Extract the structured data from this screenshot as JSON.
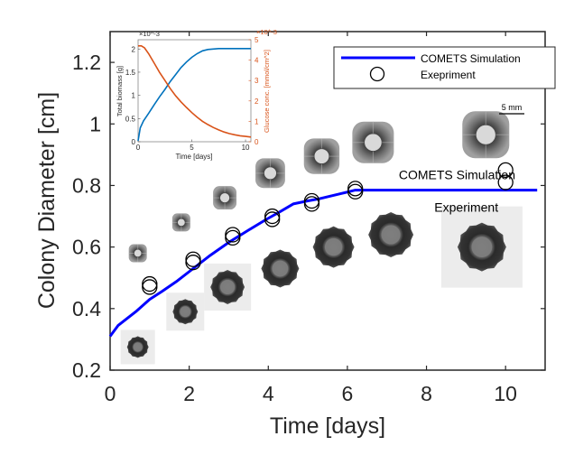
{
  "chart_data": [
    {
      "type": "line",
      "role": "main",
      "title": "",
      "xlabel": "Time [days]",
      "ylabel": "Colony Diameter [cm]",
      "xlim": [
        0,
        11
      ],
      "ylim": [
        0.2,
        1.3
      ],
      "xticks": [
        0,
        2,
        4,
        6,
        8,
        10
      ],
      "xtick_labels": [
        "0",
        "2",
        "4",
        "6",
        "8",
        "10"
      ],
      "yticks": [
        0.2,
        0.4,
        0.6,
        0.8,
        1.0,
        1.2
      ],
      "ytick_labels": [
        "0.2",
        "0.4",
        "0.6",
        "0.8",
        "1",
        "1.2"
      ],
      "grid": false,
      "legend": {
        "placement": "top-right",
        "entries": [
          {
            "label": "COMETS Simulation",
            "marker": "line",
            "color": "#0000ff"
          },
          {
            "label": "Exepriment",
            "marker": "circle",
            "color": "#000000"
          }
        ]
      },
      "series": [
        {
          "name": "COMETS Simulation",
          "style": "line",
          "color": "#0000ff",
          "x": [
            0,
            0.2,
            0.65,
            1.0,
            1.3,
            1.7,
            2.1,
            2.5,
            3.0,
            3.5,
            3.95,
            4.3,
            4.63,
            5.0,
            5.3,
            5.85,
            6.2,
            7.0,
            8.0,
            9.0,
            10.0,
            10.8
          ],
          "y": [
            0.31,
            0.345,
            0.39,
            0.43,
            0.455,
            0.49,
            0.53,
            0.57,
            0.615,
            0.655,
            0.69,
            0.715,
            0.74,
            0.75,
            0.757,
            0.774,
            0.785,
            0.785,
            0.785,
            0.785,
            0.785,
            0.785
          ]
        },
        {
          "name": "Exepriment",
          "style": "scatter",
          "marker": "open-circle",
          "color": "#000000",
          "x": [
            1.0,
            1.0,
            2.1,
            2.1,
            3.1,
            3.1,
            4.1,
            4.1,
            5.1,
            5.1,
            6.2,
            6.2,
            10.0,
            10.0
          ],
          "y": [
            0.48,
            0.47,
            0.56,
            0.55,
            0.64,
            0.63,
            0.7,
            0.69,
            0.75,
            0.74,
            0.79,
            0.78,
            0.85,
            0.81
          ]
        }
      ],
      "annotations": [
        {
          "text": "COMETS Simulation",
          "x": 7.3,
          "y": 0.82
        },
        {
          "text": "Experiment",
          "x": 8.2,
          "y": 0.715
        },
        {
          "text": "5 mm",
          "kind": "scale-bar"
        }
      ],
      "colony_images": {
        "simulation": [
          {
            "t": 0.7,
            "d": 0.58
          },
          {
            "t": 1.8,
            "d": 0.68
          },
          {
            "t": 2.9,
            "d": 0.76
          },
          {
            "t": 4.05,
            "d": 0.84
          },
          {
            "t": 5.35,
            "d": 0.895
          },
          {
            "t": 6.65,
            "d": 0.94
          },
          {
            "t": 9.5,
            "d": 0.965
          }
        ],
        "experiment": [
          {
            "t": 0.7,
            "d": 0.275,
            "framed": true
          },
          {
            "t": 1.9,
            "d": 0.39,
            "framed": true
          },
          {
            "t": 2.97,
            "d": 0.47,
            "framed": true
          },
          {
            "t": 4.3,
            "d": 0.53,
            "framed": false
          },
          {
            "t": 5.65,
            "d": 0.6,
            "framed": false
          },
          {
            "t": 7.1,
            "d": 0.64,
            "framed": false
          },
          {
            "t": 9.4,
            "d": 0.6,
            "framed": true
          }
        ]
      }
    },
    {
      "type": "line",
      "role": "inset",
      "title": "",
      "xlabel": "Time [days]",
      "ylabel": "Total biomass [g]",
      "ylabel_right": "Glucose conc. [mmol/cm^2]",
      "xlim": [
        0,
        10.5
      ],
      "ylim": [
        0,
        2.2
      ],
      "ylim_right": [
        0,
        5
      ],
      "xticks": [
        0,
        5,
        10
      ],
      "xtick_labels": [
        "0",
        "5",
        "10"
      ],
      "yticks": [
        0,
        0.5,
        1,
        1.5,
        2
      ],
      "ytick_labels": [
        "0",
        "0.5",
        "1",
        "1.5",
        "2"
      ],
      "yticks_right": [
        0,
        1,
        2,
        3,
        4,
        5
      ],
      "ytick_labels_right": [
        "0",
        "1",
        "2",
        "3",
        "4",
        "5"
      ],
      "y_exponent": "×10^-3",
      "y_exponent_right": "×10^-3",
      "grid": false,
      "series": [
        {
          "name": "Total biomass",
          "axis": "left",
          "color": "#0072bd",
          "x": [
            0,
            0.2,
            0.5,
            1,
            1.5,
            2,
            2.5,
            3,
            3.5,
            4,
            4.5,
            5,
            5.5,
            6,
            6.5,
            7,
            7.5,
            8,
            9,
            10,
            10.5
          ],
          "y": [
            0.02,
            0.3,
            0.45,
            0.62,
            0.8,
            0.97,
            1.13,
            1.3,
            1.45,
            1.6,
            1.72,
            1.82,
            1.9,
            1.96,
            1.99,
            2.0,
            2.01,
            2.01,
            2.01,
            2.01,
            2.01
          ]
        },
        {
          "name": "Glucose conc.",
          "axis": "right",
          "color": "#d95319",
          "x": [
            0,
            0.3,
            0.6,
            1,
            1.5,
            2,
            2.5,
            3,
            3.5,
            4,
            4.5,
            5,
            5.5,
            6,
            6.5,
            7,
            7.5,
            8,
            8.5,
            9,
            9.5,
            10,
            10.5
          ],
          "y": [
            4.7,
            4.7,
            4.6,
            4.3,
            3.85,
            3.4,
            3.0,
            2.6,
            2.25,
            1.95,
            1.68,
            1.43,
            1.2,
            1.0,
            0.84,
            0.7,
            0.58,
            0.48,
            0.4,
            0.34,
            0.29,
            0.26,
            0.23
          ]
        }
      ]
    }
  ]
}
